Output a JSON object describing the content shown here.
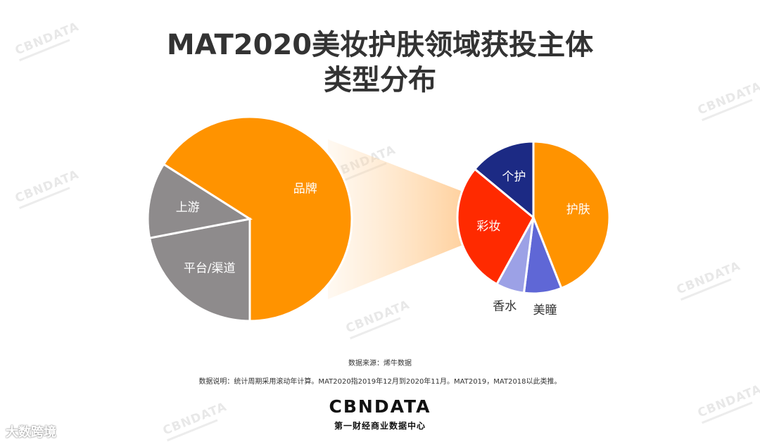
{
  "title_line1": "MAT2020美妆护肤领域获投主体",
  "title_line2": "类型分布",
  "chart_data": [
    {
      "type": "pie",
      "slices": [
        {
          "label": "品牌",
          "value": 66,
          "color": "#FF9300"
        },
        {
          "label": "平台/渠道",
          "value": 22,
          "color": "#8E8B8C"
        },
        {
          "label": "上游",
          "value": 12,
          "color": "#8E8B8C"
        }
      ]
    },
    {
      "type": "pie",
      "slices": [
        {
          "label": "护肤",
          "value": 44,
          "color": "#FF9300"
        },
        {
          "label": "美瞳",
          "value": 8,
          "color": "#5F67D6"
        },
        {
          "label": "香水",
          "value": 6,
          "color": "#9CA1E6"
        },
        {
          "label": "彩妆",
          "value": 28,
          "color": "#FF2A00"
        },
        {
          "label": "个护",
          "value": 14,
          "color": "#1C2A84"
        }
      ]
    }
  ],
  "source_note": "数据来源：烯牛数据",
  "desc_note": "数据说明：统计周期采用滚动年计算。MAT2020指2019年12月到2020年11月。MAT2019，MAT2018以此类推。",
  "brand_logo": "CBNDATA",
  "brand_sub": "第一财经商业数据中心",
  "watermark": "CBNDATA",
  "corner_mark": "大数跨境"
}
